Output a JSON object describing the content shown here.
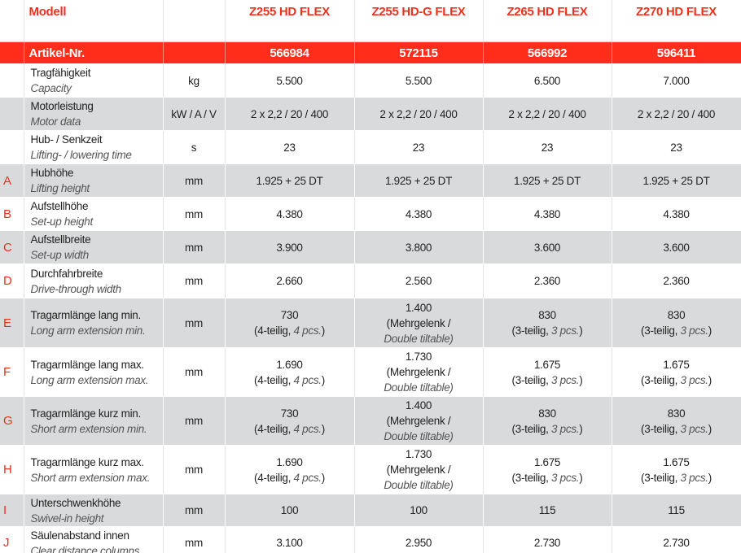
{
  "header": {
    "label": "Modell",
    "models": [
      "Z255 HD FLEX",
      "Z255 HD-G FLEX",
      "Z265 HD FLEX",
      "Z270 HD FLEX"
    ]
  },
  "article": {
    "label": "Artikel-Nr.",
    "numbers": [
      "566984",
      "572115",
      "566992",
      "596411"
    ]
  },
  "colors": {
    "accent": "#ff2d1a",
    "stripe": "#d9dadb"
  },
  "rows": [
    {
      "letter": "",
      "de": "Tragfähigkeit",
      "en": "Capacity",
      "unit": "kg",
      "cells": [
        {
          "v": "5.500"
        },
        {
          "v": "5.500"
        },
        {
          "v": "6.500"
        },
        {
          "v": "7.000"
        }
      ]
    },
    {
      "letter": "",
      "de": "Motorleistung",
      "en": "Motor data",
      "unit": "kW / A / V",
      "cells": [
        {
          "v": "2 x 2,2 / 20 / 400"
        },
        {
          "v": "2 x 2,2 / 20 / 400"
        },
        {
          "v": "2 x 2,2 / 20 / 400"
        },
        {
          "v": "2 x 2,2 / 20 / 400"
        }
      ]
    },
    {
      "letter": "",
      "de": "Hub- / Senkzeit",
      "en": "Lifting- / lowering time",
      "unit": "s",
      "cells": [
        {
          "v": "23"
        },
        {
          "v": "23"
        },
        {
          "v": "23"
        },
        {
          "v": "23"
        }
      ]
    },
    {
      "letter": "A",
      "de": "Hubhöhe",
      "en": "Lifting height",
      "unit": "mm",
      "cells": [
        {
          "v": "1.925 + 25 DT"
        },
        {
          "v": "1.925 + 25 DT"
        },
        {
          "v": "1.925 + 25 DT"
        },
        {
          "v": "1.925 + 25 DT"
        }
      ]
    },
    {
      "letter": "B",
      "de": "Aufstellhöhe",
      "en": "Set-up height",
      "unit": "mm",
      "cells": [
        {
          "v": "4.380"
        },
        {
          "v": "4.380"
        },
        {
          "v": "4.380"
        },
        {
          "v": "4.380"
        }
      ]
    },
    {
      "letter": "C",
      "de": "Aufstellbreite",
      "en": "Set-up width",
      "unit": "mm",
      "cells": [
        {
          "v": "3.900"
        },
        {
          "v": "3.800"
        },
        {
          "v": "3.600"
        },
        {
          "v": "3.600"
        }
      ]
    },
    {
      "letter": "D",
      "de": "Durchfahrbreite",
      "en": "Drive-through width",
      "unit": "mm",
      "cells": [
        {
          "v": "2.660"
        },
        {
          "v": "2.560"
        },
        {
          "v": "2.360"
        },
        {
          "v": "2.360"
        }
      ]
    },
    {
      "letter": "E",
      "de": "Tragarmlänge lang min.",
      "en": "Long arm extension min.",
      "unit": "mm",
      "cells": [
        {
          "v": "730",
          "a": "(4-teilig, ",
          "b": "4 pcs.",
          "c": ")"
        },
        {
          "v": "1.400",
          "a": "(Mehrgelenk /",
          "d": "Double tiltable)"
        },
        {
          "v": "830",
          "a": "(3-teilig, ",
          "b": "3 pcs.",
          "c": ")"
        },
        {
          "v": "830",
          "a": "(3-teilig, ",
          "b": "3 pcs.",
          "c": ")"
        }
      ]
    },
    {
      "letter": "F",
      "de": "Tragarmlänge lang max.",
      "en": "Long arm extension max.",
      "unit": "mm",
      "cells": [
        {
          "v": "1.690",
          "a": "(4-teilig, ",
          "b": "4 pcs.",
          "c": ")"
        },
        {
          "v": "1.730",
          "a": "(Mehrgelenk /",
          "d": "Double tiltable)"
        },
        {
          "v": "1.675",
          "a": "(3-teilig, ",
          "b": "3 pcs.",
          "c": ")"
        },
        {
          "v": "1.675",
          "a": "(3-teilig, ",
          "b": "3 pcs.",
          "c": ")"
        }
      ]
    },
    {
      "letter": "G",
      "de": "Tragarmlänge kurz min.",
      "en": "Short arm extension min.",
      "unit": "mm",
      "cells": [
        {
          "v": "730",
          "a": "(4-teilig, ",
          "b": "4 pcs.",
          "c": ")"
        },
        {
          "v": "1.400",
          "a": "(Mehrgelenk /",
          "d": "Double tiltable)"
        },
        {
          "v": "830",
          "a": "(3-teilig, ",
          "b": "3 pcs.",
          "c": ")"
        },
        {
          "v": "830",
          "a": "(3-teilig, ",
          "b": "3 pcs.",
          "c": ")"
        }
      ]
    },
    {
      "letter": "H",
      "de": "Tragarmlänge kurz max.",
      "en": "Short arm extension max.",
      "unit": "mm",
      "cells": [
        {
          "v": "1.690",
          "a": "(4-teilig, ",
          "b": "4 pcs.",
          "c": ")"
        },
        {
          "v": "1.730",
          "a": "(Mehrgelenk /",
          "d": "Double tiltable)"
        },
        {
          "v": "1.675",
          "a": "(3-teilig, ",
          "b": "3 pcs.",
          "c": ")"
        },
        {
          "v": "1.675",
          "a": "(3-teilig, ",
          "b": "3 pcs.",
          "c": ")"
        }
      ]
    },
    {
      "letter": "I",
      "de": "Unterschwenkhöhe",
      "en": "Swivel-in height",
      "unit": "mm",
      "cells": [
        {
          "v": "100"
        },
        {
          "v": "100"
        },
        {
          "v": "115"
        },
        {
          "v": "115"
        }
      ]
    },
    {
      "letter": "J",
      "de": "Säulenabstand innen",
      "en": "Clear distance columns",
      "unit": "mm",
      "cells": [
        {
          "v": "3.100"
        },
        {
          "v": "2.950"
        },
        {
          "v": "2.730"
        },
        {
          "v": "2.730"
        }
      ]
    }
  ]
}
